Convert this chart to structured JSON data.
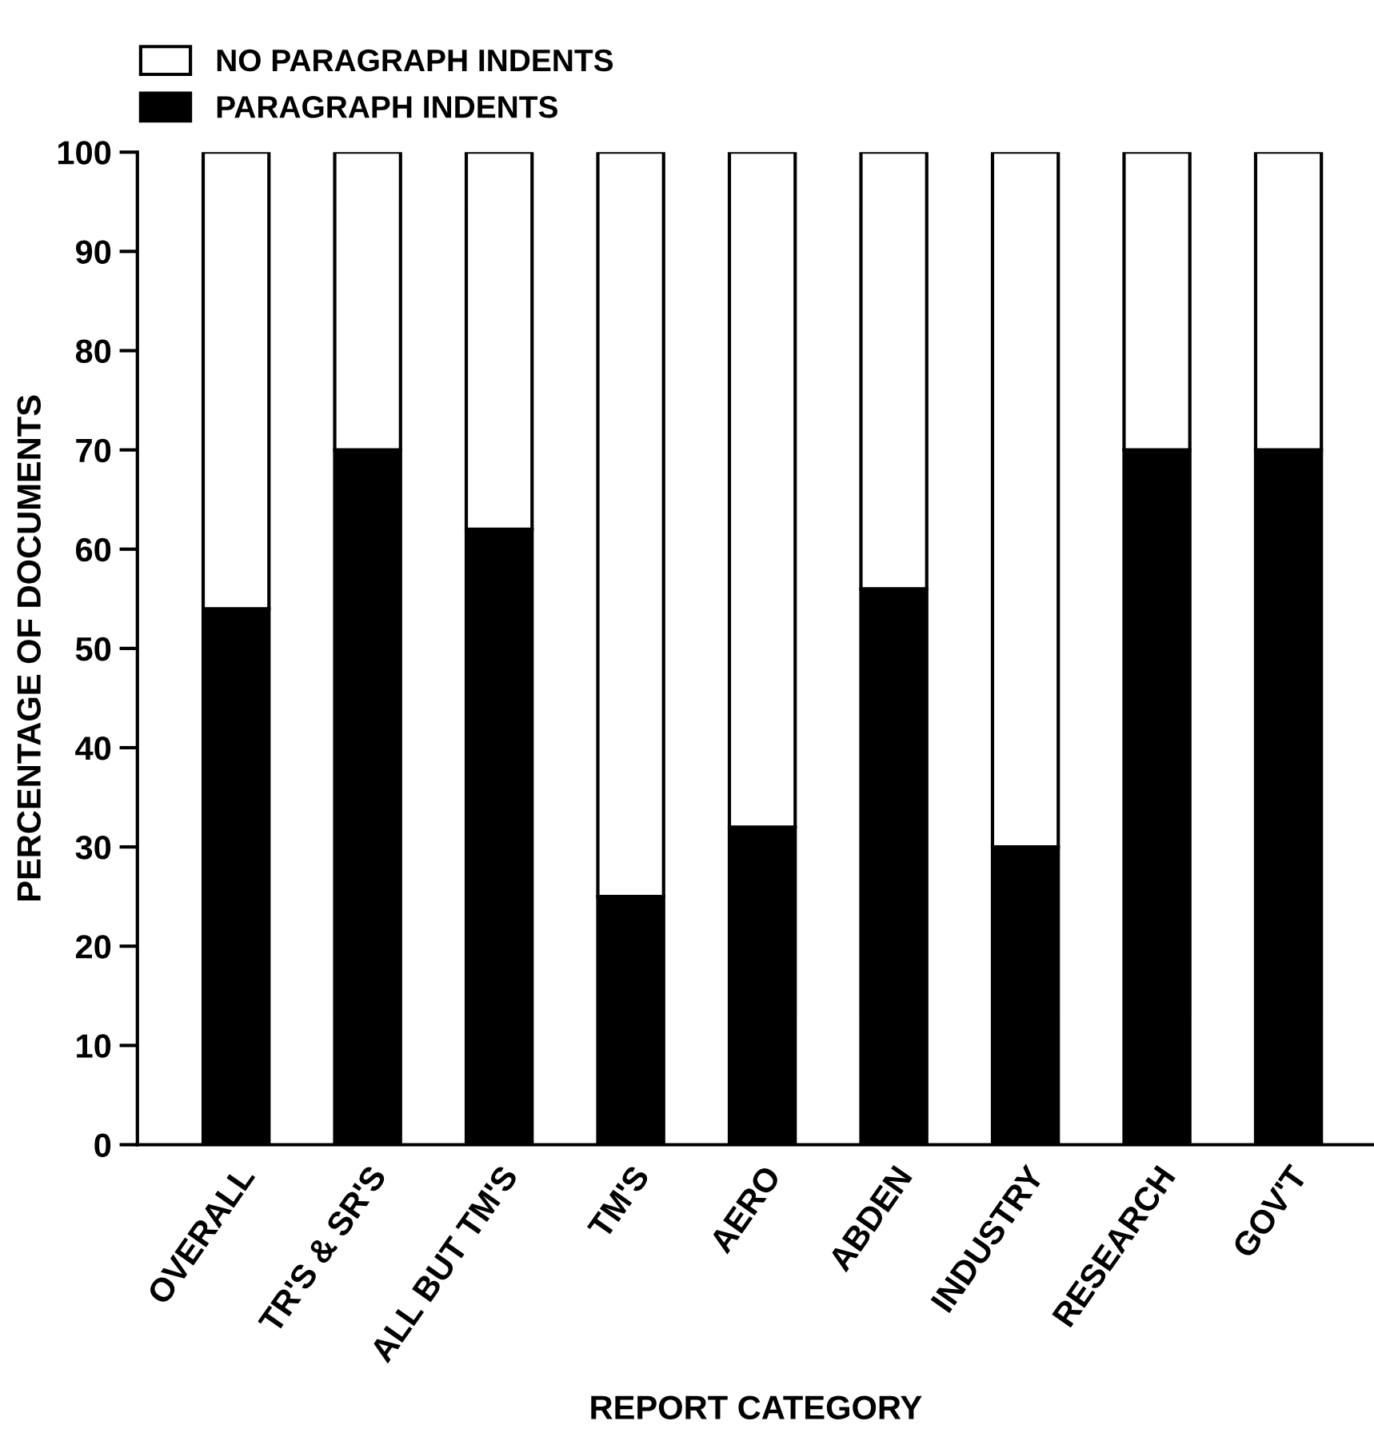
{
  "chart_data": {
    "type": "bar",
    "stacked": true,
    "xlabel": "REPORT CATEGORY",
    "ylabel": "PERCENTAGE OF DOCUMENTS",
    "categories": [
      "OVERALL",
      "TR'S & SR'S",
      "ALL BUT TM'S",
      "TM'S",
      "AERO",
      "ABDEN",
      "INDUSTRY",
      "RESEARCH",
      "GOV'T"
    ],
    "series": [
      {
        "name": "PARAGRAPH INDENTS",
        "color": "#000000",
        "values": [
          54,
          70,
          62,
          25,
          32,
          56,
          30,
          70,
          70
        ]
      },
      {
        "name": "NO PARAGRAPH INDENTS",
        "color": "#ffffff",
        "values": [
          46,
          30,
          38,
          75,
          68,
          44,
          70,
          30,
          30
        ]
      }
    ],
    "ylim": [
      0,
      100
    ],
    "yticks": [
      0,
      10,
      20,
      30,
      40,
      50,
      60,
      70,
      80,
      90,
      100
    ],
    "grid": false,
    "legend": "top left"
  }
}
